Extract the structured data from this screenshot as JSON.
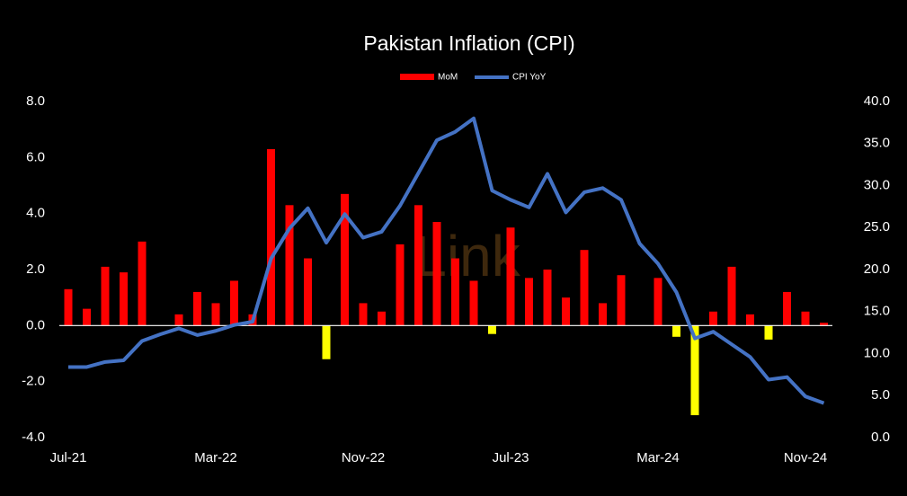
{
  "chart_data": {
    "type": "bar_line",
    "title": "Pakistan Inflation (CPI)",
    "watermark": "Link",
    "categories": [
      "Jul-21",
      null,
      null,
      null,
      null,
      null,
      null,
      null,
      "Mar-22",
      null,
      null,
      null,
      null,
      null,
      null,
      null,
      "Nov-22",
      null,
      null,
      null,
      null,
      null,
      null,
      null,
      "Jul-23",
      null,
      null,
      null,
      null,
      null,
      null,
      null,
      "Mar-24",
      null,
      null,
      null,
      null,
      null,
      null,
      null,
      "Nov-24",
      null
    ],
    "series": [
      {
        "name": "MoM",
        "type": "bar",
        "color": "#ff0000",
        "negative_color": "#ffff00",
        "values": [
          1.3,
          0.6,
          2.1,
          1.9,
          3.0,
          0.0,
          0.4,
          1.2,
          0.8,
          1.6,
          0.4,
          6.3,
          4.3,
          2.4,
          -1.2,
          4.7,
          0.8,
          0.5,
          2.9,
          4.3,
          3.7,
          2.4,
          1.6,
          -0.3,
          3.5,
          1.7,
          2.0,
          1.0,
          2.7,
          0.8,
          1.8,
          0.0,
          1.7,
          -0.4,
          -3.2,
          0.5,
          2.1,
          0.4,
          -0.5,
          1.2,
          0.5,
          0.1
        ]
      },
      {
        "name": "CPI YoY",
        "type": "line",
        "axis": "y2",
        "color": "#4472c4",
        "values": [
          8.4,
          8.4,
          9.0,
          9.2,
          11.5,
          12.3,
          13.0,
          12.2,
          12.7,
          13.4,
          13.8,
          21.3,
          24.9,
          27.3,
          23.2,
          26.6,
          23.8,
          24.5,
          27.6,
          31.5,
          35.4,
          36.4,
          38.0,
          29.4,
          28.3,
          27.4,
          31.4,
          26.8,
          29.2,
          29.7,
          28.3,
          23.1,
          20.7,
          17.3,
          11.8,
          12.6,
          11.1,
          9.6,
          6.9,
          7.2,
          4.9,
          4.1
        ]
      }
    ],
    "ylim": [
      -4,
      8
    ],
    "yticks": [
      {
        "value": -4,
        "label": "-4.0"
      },
      {
        "value": -2,
        "label": "-2.0"
      },
      {
        "value": 0,
        "label": "0.0"
      },
      {
        "value": 2,
        "label": "2.0"
      },
      {
        "value": 4,
        "label": "4.0"
      },
      {
        "value": 6,
        "label": "6.0"
      },
      {
        "value": 8,
        "label": "8.0"
      }
    ],
    "y2lim": [
      0,
      40
    ],
    "y2ticks": [
      {
        "value": 0,
        "label": "0.0"
      },
      {
        "value": 5,
        "label": "5.0"
      },
      {
        "value": 10,
        "label": "10.0"
      },
      {
        "value": 15,
        "label": "15.0"
      },
      {
        "value": 20,
        "label": "20.0"
      },
      {
        "value": 25,
        "label": "25.0"
      },
      {
        "value": 30,
        "label": "30.0"
      },
      {
        "value": 35,
        "label": "35.0"
      },
      {
        "value": 40,
        "label": "40.0"
      }
    ],
    "legend": "top",
    "grid": false
  }
}
